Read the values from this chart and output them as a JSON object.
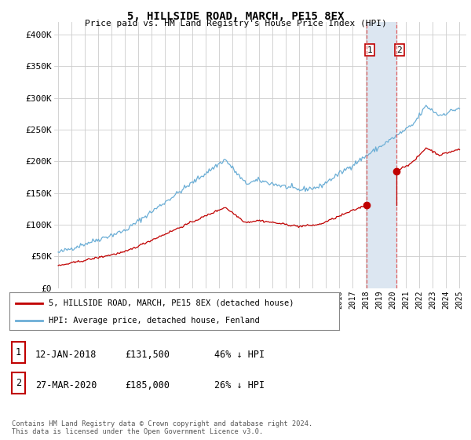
{
  "title": "5, HILLSIDE ROAD, MARCH, PE15 8EX",
  "subtitle": "Price paid vs. HM Land Registry's House Price Index (HPI)",
  "ylim": [
    0,
    420000
  ],
  "yticks": [
    0,
    50000,
    100000,
    150000,
    200000,
    250000,
    300000,
    350000,
    400000
  ],
  "ytick_labels": [
    "£0",
    "£50K",
    "£100K",
    "£150K",
    "£200K",
    "£250K",
    "£300K",
    "£350K",
    "£400K"
  ],
  "hpi_color": "#6baed6",
  "price_color": "#c00000",
  "vline_color": "#e06060",
  "highlight_color": "#dce6f1",
  "transaction1_year": 2018.04,
  "transaction1_price": 131500,
  "transaction2_year": 2020.25,
  "transaction2_price": 185000,
  "legend_house_label": "5, HILLSIDE ROAD, MARCH, PE15 8EX (detached house)",
  "legend_hpi_label": "HPI: Average price, detached house, Fenland",
  "footnote": "Contains HM Land Registry data © Crown copyright and database right 2024.\nThis data is licensed under the Open Government Licence v3.0.",
  "background_color": "#ffffff",
  "grid_color": "#cccccc",
  "xmin": 1994.7,
  "xmax": 2025.5
}
